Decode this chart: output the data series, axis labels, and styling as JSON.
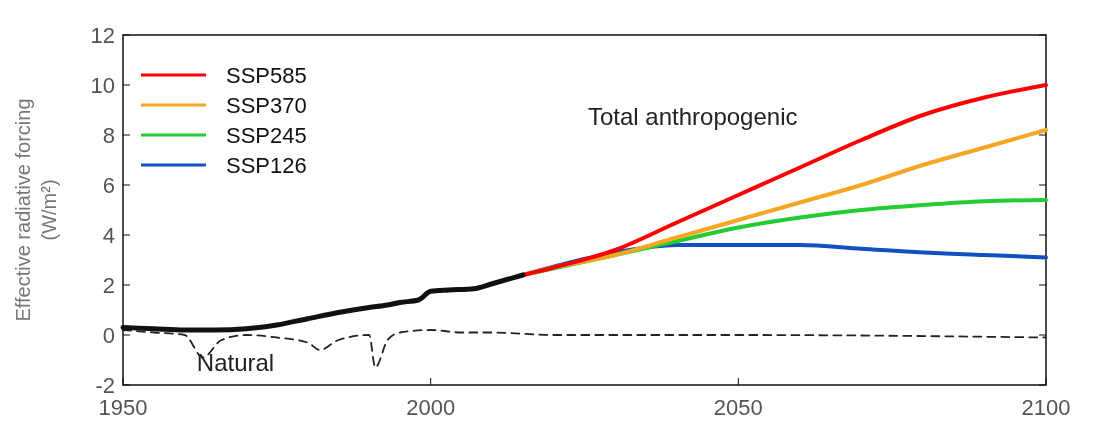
{
  "chart_data": {
    "type": "line",
    "ylabel": "Effective radiative forcing (W/m²)",
    "xlim": [
      1950,
      2100
    ],
    "xticks": [
      1950,
      2000,
      2050,
      2100
    ],
    "ylim": [
      -2,
      12
    ],
    "yticks": [
      -2,
      0,
      2,
      4,
      6,
      8,
      10,
      12
    ],
    "grid": false,
    "legend": "top left",
    "line_style": "solid",
    "marker": "none",
    "annotations": [
      "Total anthropogenic"
    ],
    "series": [
      {
        "color": "#111111",
        "x": [
          1950,
          1955,
          1960,
          1965,
          1970,
          1975,
          1980,
          1985,
          1990,
          1993,
          1995,
          1998,
          2000,
          2003,
          2007,
          2010,
          2015
        ],
        "values": [
          0.3,
          0.25,
          0.2,
          0.2,
          0.25,
          0.4,
          0.65,
          0.9,
          1.1,
          1.2,
          1.3,
          1.4,
          1.75,
          1.8,
          1.85,
          2.05,
          2.4
        ]
      },
      {
        "name": "SSP585",
        "color": "#ff0000",
        "x": [
          2015,
          2020,
          2030,
          2040,
          2050,
          2060,
          2070,
          2080,
          2090,
          2100
        ],
        "values": [
          2.4,
          2.7,
          3.4,
          4.5,
          5.6,
          6.7,
          7.8,
          8.8,
          9.5,
          10.0
        ]
      },
      {
        "name": "SSP370",
        "color": "#f5a623",
        "x": [
          2015,
          2020,
          2030,
          2040,
          2050,
          2060,
          2070,
          2080,
          2090,
          2100
        ],
        "values": [
          2.4,
          2.7,
          3.2,
          3.9,
          4.6,
          5.3,
          6.0,
          6.8,
          7.5,
          8.2
        ]
      },
      {
        "name": "SSP245",
        "color": "#22cc33",
        "x": [
          2015,
          2030,
          2040,
          2050,
          2060,
          2070,
          2080,
          2090,
          2100
        ],
        "values": [
          2.4,
          3.2,
          3.75,
          4.3,
          4.7,
          5.0,
          5.2,
          5.35,
          5.4
        ]
      },
      {
        "name": "SSP126",
        "color": "#1050c0",
        "x": [
          2015,
          2030,
          2040,
          2050,
          2060,
          2070,
          2080,
          2090,
          2100
        ],
        "values": [
          2.4,
          3.3,
          3.6,
          3.6,
          3.6,
          3.45,
          3.3,
          3.2,
          3.1
        ]
      },
      {
        "name": "Natural",
        "color": "#222222",
        "line_style": "dashed",
        "x": [
          1950,
          1955,
          1960,
          1963,
          1966,
          1970,
          1975,
          1980,
          1982,
          1985,
          1990,
          1991,
          1993,
          1995,
          2000,
          2005,
          2010,
          2020,
          2050,
          2100
        ],
        "values": [
          0.2,
          0.1,
          0.0,
          -0.9,
          -0.2,
          0.0,
          -0.1,
          -0.3,
          -0.6,
          -0.2,
          0.0,
          -1.3,
          -0.2,
          0.1,
          0.2,
          0.1,
          0.1,
          0.0,
          0.0,
          -0.1
        ]
      }
    ]
  }
}
